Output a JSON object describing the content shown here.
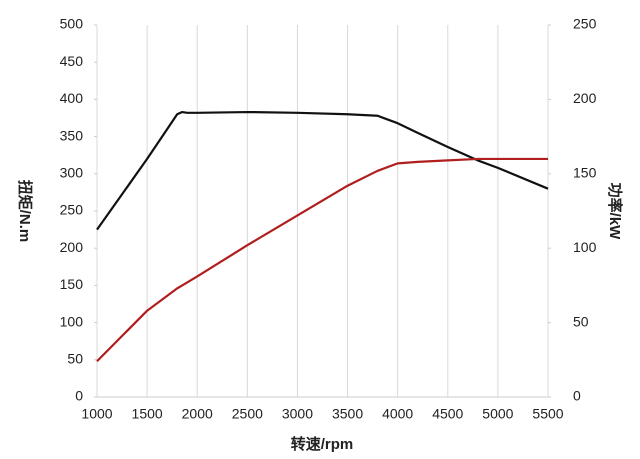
{
  "chart_data": {
    "type": "line",
    "x": [
      1000,
      1500,
      1800,
      1850,
      1900,
      2000,
      2500,
      3000,
      3500,
      3800,
      4000,
      4200,
      4500,
      4800,
      5000,
      5500
    ],
    "xlim": [
      1000,
      5500
    ],
    "xticks": [
      1000,
      1500,
      2000,
      2500,
      3000,
      3500,
      4000,
      4500,
      5000,
      5500
    ],
    "ylim": [
      0,
      500
    ],
    "yticks": [
      0,
      50,
      100,
      150,
      200,
      250,
      300,
      350,
      400,
      450,
      500
    ],
    "y2lim": [
      0,
      250
    ],
    "y2ticks": [
      0,
      50,
      100,
      150,
      200,
      250
    ],
    "xlabel": "转速/rpm",
    "ylabel": "扭矩/N.m",
    "y2label": "功率/kW",
    "grid": true,
    "series": [
      {
        "color": "#111111",
        "values": [
          225,
          320,
          380,
          383,
          382,
          382,
          383,
          382,
          380,
          378,
          368,
          355,
          336,
          318,
          308,
          280
        ]
      },
      {
        "color": "#b01e1e",
        "axis": "y2",
        "values": [
          24,
          58,
          73,
          75,
          77,
          81,
          102,
          122,
          142,
          152,
          157,
          158,
          159,
          160,
          160,
          160
        ]
      }
    ]
  }
}
